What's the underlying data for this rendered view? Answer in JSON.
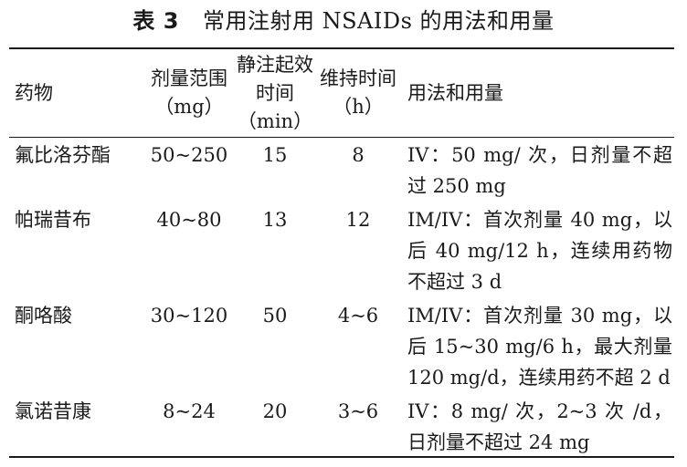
{
  "caption": {
    "label": "表 3",
    "title": "常用注射用 NSAIDs 的用法和用量"
  },
  "table": {
    "headers": {
      "drug": "药物",
      "dose_range": "剂量范围（mg）",
      "onset": "静注起效时间（min）",
      "duration": "维持时间（h）",
      "usage": "用法和用量"
    },
    "rows": [
      {
        "drug": "氟比洛芬酯",
        "dose_range": "50~250",
        "onset": "15",
        "duration": "8",
        "usage": "IV：50 mg/ 次，日剂量不超过 250 mg"
      },
      {
        "drug": "帕瑞昔布",
        "dose_range": "40~80",
        "onset": "13",
        "duration": "12",
        "usage": "IM/IV：首次剂量 40 mg，以后 40 mg/12 h，连续用药物不超过 3 d"
      },
      {
        "drug": "酮咯酸",
        "dose_range": "30~120",
        "onset": "50",
        "duration": "4~6",
        "usage": "IM/IV：首次剂量 30 mg，以后 15~30 mg/6 h，最大剂量 120 mg/d，连续用药不超 2 d"
      },
      {
        "drug": "氯诺昔康",
        "dose_range": "8~24",
        "onset": "20",
        "duration": "3~6",
        "usage": "IV：8 mg/ 次，2~3 次 /d，日剂量不超过 24 mg"
      }
    ]
  }
}
